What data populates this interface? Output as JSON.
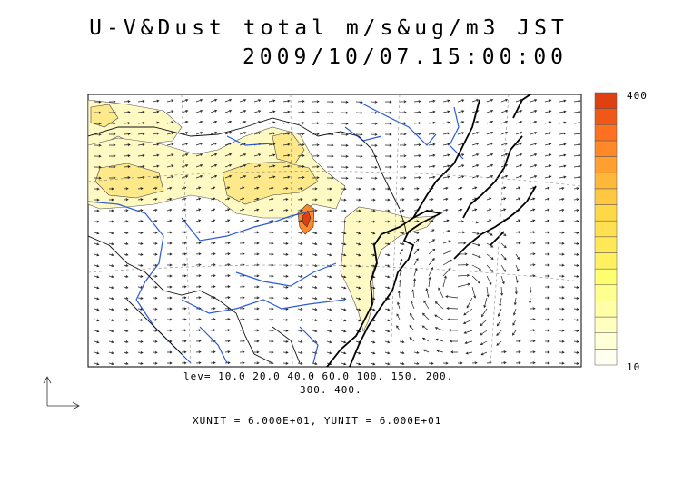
{
  "title": {
    "line1": "U-V&Dust total m/s&ug/m3 JST",
    "line2": "2009/10/07.15:00:00"
  },
  "legend": {
    "levels_line1": "lev= 10.0 20.0 40.0 60.0 100. 150. 200.",
    "levels_line2": "300. 400.",
    "colorbar_max": "400",
    "colorbar_min": "10",
    "colorbar_colors": [
      "#fffff0",
      "#ffffd8",
      "#ffffc0",
      "#ffffa8",
      "#ffff90",
      "#ffff70",
      "#fff060",
      "#ffe858",
      "#ffe050",
      "#ffd848",
      "#ffc840",
      "#ffb838",
      "#ffa030",
      "#ff8828",
      "#ff7020",
      "#f05818",
      "#e04010"
    ]
  },
  "units": "XUNIT = 6.000E+01, YUNIT = 6.000E+01",
  "colors": {
    "coast": "#000000",
    "river": "#2a5bd7",
    "dust_light": "#fff9c4",
    "dust_mid": "#fde98a",
    "dust_high": "#e04010"
  }
}
